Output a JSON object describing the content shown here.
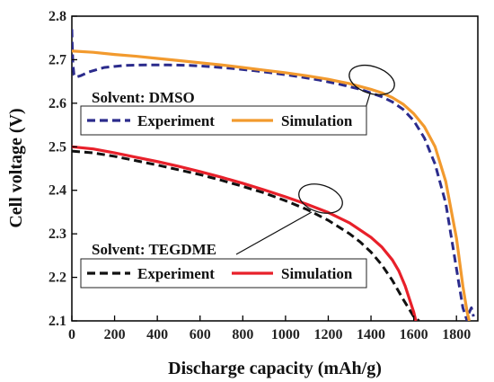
{
  "colors": {
    "dmso_experiment": "#2b2b8c",
    "dmso_simulation": "#f29a2e",
    "tegdme_experiment": "#111111",
    "tegdme_simulation": "#e8202a"
  },
  "chart_data": {
    "type": "line",
    "xlabel": "Discharge capacity (mAh/g)",
    "ylabel": "Cell voltage (V)",
    "xlim": [
      0,
      1900
    ],
    "ylim": [
      2.1,
      2.8
    ],
    "xticks": [
      "0",
      "200",
      "400",
      "600",
      "800",
      "1000",
      "1200",
      "1400",
      "1600",
      "1800"
    ],
    "yticks": [
      "2.1",
      "2.2",
      "2.3",
      "2.4",
      "2.5",
      "2.6",
      "2.7",
      "2.8"
    ],
    "grid": false,
    "legends": [
      {
        "title": "Solvent: DMSO",
        "entries": [
          {
            "label": "Experiment",
            "series": "dmso_experiment"
          },
          {
            "label": "Simulation",
            "series": "dmso_simulation"
          }
        ]
      },
      {
        "title": "Solvent: TEGDME",
        "entries": [
          {
            "label": "Experiment",
            "series": "tegdme_experiment"
          },
          {
            "label": "Simulation",
            "series": "tegdme_simulation"
          }
        ]
      }
    ],
    "series": [
      {
        "key": "dmso_experiment",
        "style": "dashed",
        "x": [
          0,
          2,
          5,
          10,
          20,
          40,
          80,
          150,
          250,
          350,
          450,
          550,
          650,
          750,
          850,
          950,
          1050,
          1150,
          1250,
          1350,
          1450,
          1500,
          1550,
          1600,
          1650,
          1700,
          1750,
          1800,
          1830,
          1850,
          1860,
          1870,
          1880
        ],
        "y": [
          2.77,
          2.73,
          2.69,
          2.665,
          2.66,
          2.663,
          2.672,
          2.682,
          2.687,
          2.688,
          2.688,
          2.687,
          2.684,
          2.68,
          2.675,
          2.669,
          2.662,
          2.654,
          2.644,
          2.632,
          2.615,
          2.603,
          2.586,
          2.56,
          2.52,
          2.46,
          2.37,
          2.22,
          2.13,
          2.1,
          2.12,
          2.13,
          2.11
        ]
      },
      {
        "key": "dmso_simulation",
        "style": "solid",
        "x": [
          0,
          100,
          200,
          300,
          400,
          500,
          600,
          700,
          800,
          900,
          1000,
          1100,
          1200,
          1300,
          1400,
          1450,
          1500,
          1550,
          1600,
          1650,
          1700,
          1750,
          1800,
          1830,
          1850,
          1860
        ],
        "y": [
          2.72,
          2.717,
          2.712,
          2.708,
          2.703,
          2.698,
          2.693,
          2.688,
          2.682,
          2.676,
          2.67,
          2.663,
          2.655,
          2.645,
          2.632,
          2.624,
          2.613,
          2.598,
          2.576,
          2.546,
          2.5,
          2.42,
          2.29,
          2.18,
          2.12,
          2.1
        ]
      },
      {
        "key": "tegdme_experiment",
        "style": "dashed",
        "x": [
          0,
          100,
          200,
          300,
          400,
          500,
          600,
          700,
          800,
          900,
          1000,
          1100,
          1200,
          1300,
          1350,
          1400,
          1450,
          1500,
          1550,
          1600,
          1625
        ],
        "y": [
          2.49,
          2.486,
          2.478,
          2.468,
          2.458,
          2.447,
          2.436,
          2.423,
          2.409,
          2.394,
          2.376,
          2.356,
          2.331,
          2.3,
          2.281,
          2.258,
          2.229,
          2.193,
          2.15,
          2.11,
          2.1
        ]
      },
      {
        "key": "tegdme_simulation",
        "style": "solid",
        "x": [
          0,
          100,
          200,
          300,
          400,
          500,
          600,
          700,
          800,
          900,
          1000,
          1100,
          1200,
          1300,
          1400,
          1450,
          1500,
          1530,
          1560,
          1580,
          1600,
          1610
        ],
        "y": [
          2.5,
          2.495,
          2.486,
          2.476,
          2.466,
          2.455,
          2.443,
          2.43,
          2.416,
          2.401,
          2.385,
          2.368,
          2.349,
          2.325,
          2.292,
          2.27,
          2.24,
          2.215,
          2.18,
          2.15,
          2.12,
          2.1
        ]
      }
    ]
  }
}
